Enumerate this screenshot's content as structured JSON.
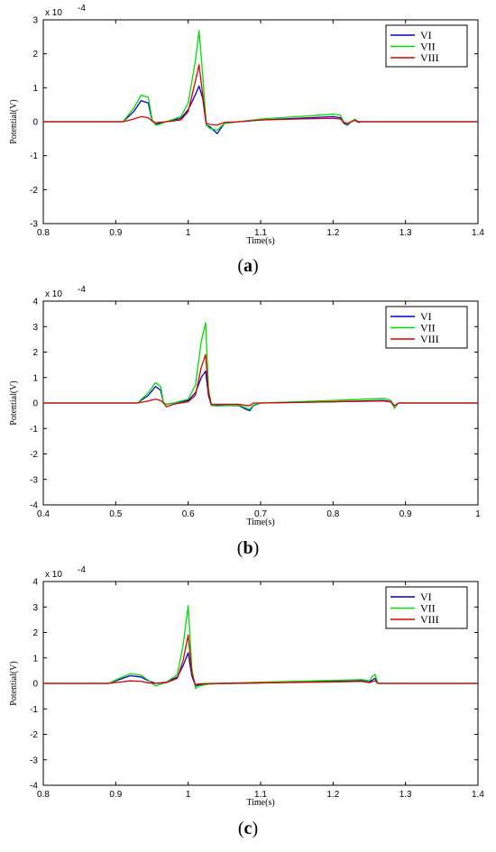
{
  "figure": {
    "captions": [
      {
        "open": "(",
        "letter": "a",
        "close": ")"
      },
      {
        "open": "(",
        "letter": "b",
        "close": ")"
      },
      {
        "open": "(",
        "letter": "c",
        "close": ")"
      }
    ]
  },
  "colors": {
    "VI": "#0000cc",
    "VII": "#00dd00",
    "VIII": "#dd0000"
  },
  "chart_data": [
    {
      "type": "line",
      "xlabel": "Time(s)",
      "ylabel": "Potential(V)",
      "yscale_label": "x 10",
      "yscale_exp": "-4",
      "xlim": [
        0.8,
        1.4
      ],
      "ylim": [
        -3,
        3
      ],
      "xticks": [
        "0.8",
        "0.9",
        "1",
        "1.1",
        "1.2",
        "1.3",
        "1.4"
      ],
      "xtick_values": [
        0.8,
        0.9,
        1.0,
        1.1,
        1.2,
        1.3,
        1.4
      ],
      "yticks": [
        "-3",
        "-2",
        "-1",
        "0",
        "1",
        "2",
        "3"
      ],
      "ytick_values": [
        -3,
        -2,
        -1,
        0,
        1,
        2,
        3
      ],
      "legend_position": "top-right",
      "grid": false,
      "series": [
        {
          "name": "VI",
          "color": "#0000cc",
          "x": [
            0.8,
            0.91,
            0.925,
            0.935,
            0.945,
            0.95,
            0.955,
            0.96,
            0.97,
            0.99,
            1.0,
            1.01,
            1.015,
            1.02,
            1.025,
            1.03,
            1.04,
            1.05,
            1.07,
            1.1,
            1.15,
            1.2,
            1.21,
            1.215,
            1.22,
            1.225,
            1.23,
            1.235,
            1.24,
            1.3,
            1.4
          ],
          "y": [
            0,
            0,
            0.3,
            0.62,
            0.55,
            0.05,
            -0.08,
            -0.05,
            0,
            0.1,
            0.35,
            0.8,
            1.05,
            0.7,
            -0.1,
            -0.15,
            -0.35,
            -0.05,
            0,
            0.05,
            0.1,
            0.15,
            0.12,
            -0.05,
            -0.1,
            0,
            0.05,
            -0.02,
            0,
            0,
            0
          ]
        },
        {
          "name": "VII",
          "color": "#00dd00",
          "x": [
            0.8,
            0.91,
            0.925,
            0.935,
            0.945,
            0.95,
            0.955,
            0.96,
            0.97,
            0.99,
            1.0,
            1.01,
            1.015,
            1.02,
            1.025,
            1.03,
            1.04,
            1.05,
            1.07,
            1.1,
            1.15,
            1.2,
            1.21,
            1.215,
            1.22,
            1.225,
            1.23,
            1.235,
            1.24,
            1.3,
            1.4
          ],
          "y": [
            0,
            0,
            0.4,
            0.78,
            0.72,
            0.08,
            -0.1,
            -0.08,
            0,
            0.15,
            0.55,
            1.8,
            2.68,
            1.4,
            -0.1,
            -0.2,
            -0.25,
            -0.05,
            0,
            0.08,
            0.15,
            0.22,
            0.2,
            -0.02,
            -0.08,
            0,
            0.08,
            0,
            0,
            0,
            0
          ]
        },
        {
          "name": "VIII",
          "color": "#dd0000",
          "x": [
            0.8,
            0.91,
            0.925,
            0.935,
            0.945,
            0.95,
            0.955,
            0.96,
            0.97,
            0.99,
            1.0,
            1.01,
            1.015,
            1.02,
            1.025,
            1.03,
            1.04,
            1.05,
            1.07,
            1.1,
            1.15,
            1.2,
            1.21,
            1.215,
            1.22,
            1.225,
            1.23,
            1.235,
            1.24,
            1.3,
            1.4
          ],
          "y": [
            0,
            0,
            0.08,
            0.15,
            0.12,
            0.02,
            -0.03,
            -0.02,
            0,
            0.05,
            0.3,
            1.2,
            1.68,
            0.8,
            -0.05,
            -0.08,
            -0.1,
            -0.02,
            0,
            0.05,
            0.08,
            0.1,
            0.08,
            -0.02,
            -0.05,
            0,
            0.04,
            0,
            0,
            0,
            0
          ]
        }
      ]
    },
    {
      "type": "line",
      "xlabel": "Time(s)",
      "ylabel": "Potential(V)",
      "yscale_label": "x 10",
      "yscale_exp": "-4",
      "xlim": [
        0.4,
        1.0
      ],
      "ylim": [
        -4,
        4
      ],
      "xticks": [
        "0.4",
        "0.5",
        "0.6",
        "0.7",
        "0.8",
        "0.9",
        "1"
      ],
      "xtick_values": [
        0.4,
        0.5,
        0.6,
        0.7,
        0.8,
        0.9,
        1.0
      ],
      "yticks": [
        "-4",
        "-3",
        "-2",
        "-1",
        "0",
        "1",
        "2",
        "3",
        "4"
      ],
      "ytick_values": [
        -4,
        -3,
        -2,
        -1,
        0,
        1,
        2,
        3,
        4
      ],
      "legend_position": "top-right",
      "grid": false,
      "series": [
        {
          "name": "VI",
          "color": "#0000cc",
          "x": [
            0.4,
            0.53,
            0.545,
            0.555,
            0.562,
            0.566,
            0.57,
            0.58,
            0.6,
            0.61,
            0.618,
            0.624,
            0.628,
            0.632,
            0.64,
            0.67,
            0.68,
            0.685,
            0.69,
            0.7,
            0.8,
            0.87,
            0.88,
            0.885,
            0.89,
            1.0
          ],
          "y": [
            0,
            0,
            0.3,
            0.65,
            0.5,
            0,
            -0.05,
            0,
            0.1,
            0.4,
            1.0,
            1.25,
            0.3,
            -0.1,
            -0.1,
            -0.1,
            -0.25,
            -0.3,
            -0.1,
            0,
            0.05,
            0.1,
            0.05,
            -0.2,
            0,
            0
          ]
        },
        {
          "name": "VII",
          "color": "#00dd00",
          "x": [
            0.4,
            0.53,
            0.545,
            0.555,
            0.562,
            0.566,
            0.57,
            0.58,
            0.6,
            0.61,
            0.618,
            0.624,
            0.628,
            0.632,
            0.64,
            0.67,
            0.68,
            0.685,
            0.69,
            0.7,
            0.8,
            0.87,
            0.88,
            0.885,
            0.89,
            1.0
          ],
          "y": [
            0,
            0,
            0.4,
            0.8,
            0.65,
            0.02,
            -0.06,
            0,
            0.15,
            0.7,
            2.4,
            3.15,
            0.6,
            -0.1,
            -0.12,
            -0.08,
            -0.2,
            -0.25,
            -0.08,
            0,
            0.1,
            0.18,
            0.1,
            -0.2,
            0,
            0
          ]
        },
        {
          "name": "VIII",
          "color": "#dd0000",
          "x": [
            0.4,
            0.53,
            0.545,
            0.555,
            0.562,
            0.566,
            0.57,
            0.58,
            0.6,
            0.61,
            0.618,
            0.624,
            0.628,
            0.632,
            0.64,
            0.67,
            0.68,
            0.685,
            0.69,
            0.7,
            0.8,
            0.87,
            0.88,
            0.885,
            0.89,
            1.0
          ],
          "y": [
            0,
            0,
            0.08,
            0.15,
            0.1,
            0,
            -0.15,
            -0.05,
            0.05,
            0.3,
            1.4,
            1.9,
            0.4,
            -0.05,
            -0.05,
            -0.05,
            -0.1,
            -0.1,
            0,
            0,
            0.05,
            0.08,
            0.04,
            -0.1,
            0,
            0
          ]
        }
      ]
    },
    {
      "type": "line",
      "xlabel": "Time(s)",
      "ylabel": "Potential(V)",
      "yscale_label": "x 10",
      "yscale_exp": "-4",
      "xlim": [
        0.8,
        1.4
      ],
      "ylim": [
        -4,
        4
      ],
      "xticks": [
        "0.8",
        "0.9",
        "1",
        "1.1",
        "1.2",
        "1.3",
        "1.4"
      ],
      "xtick_values": [
        0.8,
        0.9,
        1.0,
        1.1,
        1.2,
        1.3,
        1.4
      ],
      "yticks": [
        "-4",
        "-3",
        "-2",
        "-1",
        "0",
        "1",
        "2",
        "3",
        "4"
      ],
      "ytick_values": [
        -4,
        -3,
        -2,
        -1,
        0,
        1,
        2,
        3,
        4
      ],
      "legend_position": "top-right",
      "grid": false,
      "series": [
        {
          "name": "VI",
          "color": "#0000cc",
          "x": [
            0.8,
            0.89,
            0.905,
            0.92,
            0.935,
            0.945,
            0.955,
            0.97,
            0.985,
            0.993,
            1.0,
            1.005,
            1.01,
            1.015,
            1.03,
            1.1,
            1.2,
            1.24,
            1.25,
            1.255,
            1.258,
            1.262,
            1.27,
            1.4
          ],
          "y": [
            0,
            0,
            0.15,
            0.3,
            0.25,
            0.1,
            0,
            0.05,
            0.25,
            0.7,
            1.2,
            0.3,
            -0.1,
            -0.05,
            -0.02,
            0.02,
            0.08,
            0.1,
            0.05,
            0.15,
            0.2,
            0,
            0,
            0
          ]
        },
        {
          "name": "VII",
          "color": "#00dd00",
          "x": [
            0.8,
            0.89,
            0.905,
            0.92,
            0.935,
            0.945,
            0.955,
            0.97,
            0.985,
            0.993,
            1.0,
            1.005,
            1.01,
            1.015,
            1.03,
            1.1,
            1.2,
            1.24,
            1.25,
            1.255,
            1.258,
            1.262,
            1.27,
            1.4
          ],
          "y": [
            0,
            0,
            0.2,
            0.38,
            0.32,
            0.12,
            -0.1,
            0.05,
            0.35,
            1.5,
            3.05,
            0.6,
            -0.2,
            -0.1,
            -0.02,
            0.05,
            0.12,
            0.15,
            0.1,
            0.3,
            0.35,
            0,
            0,
            0
          ]
        },
        {
          "name": "VIII",
          "color": "#dd0000",
          "x": [
            0.8,
            0.89,
            0.905,
            0.92,
            0.935,
            0.945,
            0.955,
            0.97,
            0.985,
            0.993,
            1.0,
            1.005,
            1.01,
            1.015,
            1.03,
            1.1,
            1.2,
            1.24,
            1.25,
            1.255,
            1.258,
            1.262,
            1.27,
            1.4
          ],
          "y": [
            0,
            0,
            0.05,
            0.1,
            0.08,
            0.02,
            0,
            0.03,
            0.2,
            0.9,
            1.9,
            0.4,
            -0.05,
            -0.02,
            0,
            0.02,
            0.06,
            0.08,
            0.03,
            0.08,
            0.1,
            0,
            0,
            0
          ]
        }
      ]
    }
  ]
}
